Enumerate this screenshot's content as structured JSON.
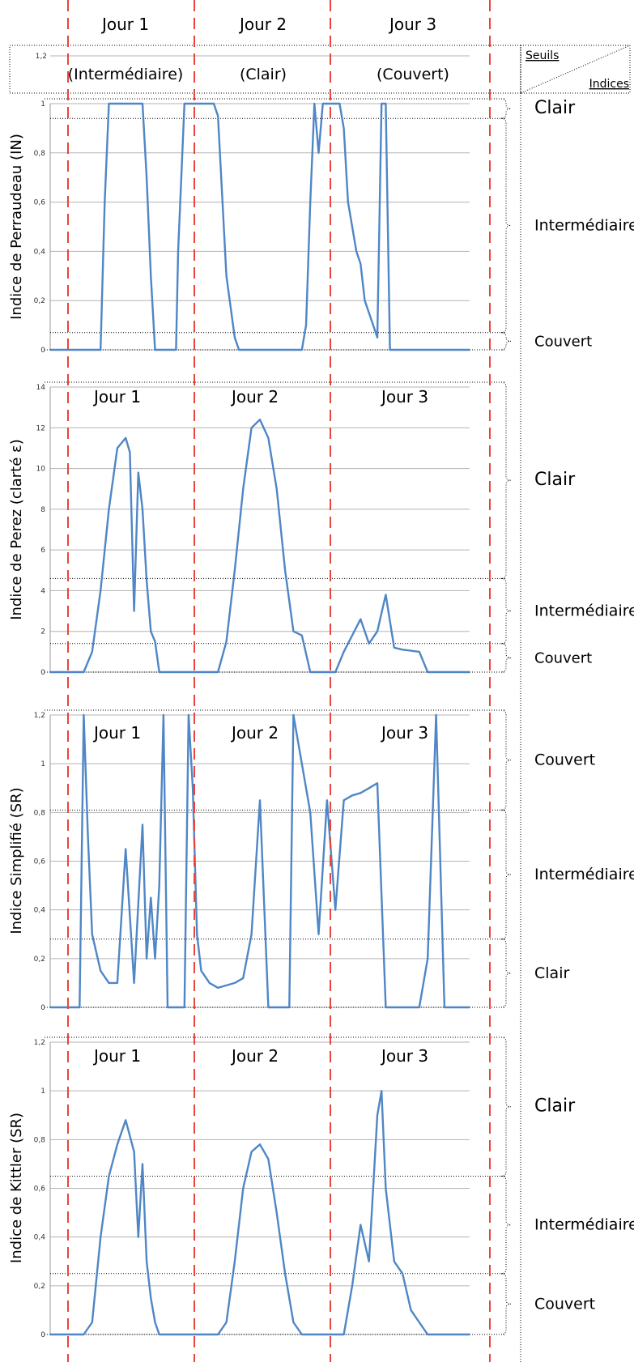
{
  "header": {
    "day_labels": [
      "Jour 1",
      "Jour 2",
      "Jour 3"
    ],
    "sky_types": [
      "(Intermédiaire)",
      "(Clair)",
      "(Couvert)"
    ],
    "axis_max_label": "1,2",
    "legend_seuils": "Seuils",
    "legend_indices": "Indices"
  },
  "colors": {
    "line": "#4f86c6",
    "grid": "#b3b3b3",
    "day_separator": "#e8453c",
    "threshold": "#000000"
  },
  "chart_data": [
    {
      "type": "line",
      "ylabel": "Indice de Perraudeau (IN)",
      "ylim": [
        0,
        1
      ],
      "yticks": [
        "0",
        "0,2",
        "0,4",
        "0,6",
        "0,8",
        "1"
      ],
      "day_labels": [],
      "thresholds": [
        0.07,
        0.94
      ],
      "zones": [
        "Clair",
        "Intermédiaire",
        "Couvert"
      ],
      "series": [
        {
          "x": [
            0,
            0.05,
            0.1,
            0.12,
            0.13,
            0.14,
            0.15,
            0.16,
            0.17,
            0.18,
            0.19,
            0.2,
            0.21,
            0.22,
            0.23,
            0.24,
            0.25,
            0.26,
            0.27,
            0.28,
            0.29,
            0.3,
            0.305,
            0.32,
            0.33,
            0.34,
            0.35,
            0.36,
            0.37,
            0.38,
            0.39,
            0.4,
            0.42,
            0.44,
            0.45,
            0.46,
            0.47,
            0.48,
            0.49,
            0.5,
            0.51,
            0.52,
            0.53,
            0.54,
            0.55,
            0.56,
            0.57,
            0.58,
            0.59,
            0.6,
            0.61,
            0.62,
            0.63,
            0.64,
            0.65,
            0.66,
            0.67,
            0.68,
            0.69,
            0.7,
            0.71,
            0.72,
            0.73,
            0.74,
            0.75,
            0.76,
            0.77,
            0.78,
            0.79,
            0.8,
            0.81,
            0.82,
            0.83,
            0.84,
            0.85,
            0.86,
            0.87,
            0.88,
            0.89,
            0.9,
            0.91,
            0.92,
            0.93,
            0.94,
            0.95,
            0.96,
            0.97,
            0.98,
            0.99,
            1
          ],
          "y": [
            0,
            0,
            0,
            0,
            0.6,
            1,
            1,
            1,
            1,
            1,
            1,
            1,
            1,
            1,
            0.7,
            0.3,
            0,
            0,
            0,
            0,
            0,
            0,
            0.4,
            1,
            1,
            1,
            1,
            1,
            1,
            1,
            1,
            0.95,
            0.3,
            0.05,
            0,
            0,
            0,
            0,
            0,
            0,
            0,
            0,
            0,
            0,
            0,
            0,
            0,
            0,
            0,
            0,
            0.1,
            0.6,
            1,
            0.8,
            1,
            1,
            1,
            1,
            1,
            0.9,
            0.6,
            0.5,
            0.4,
            0.35,
            0.2,
            0.15,
            0.1,
            0.05,
            1,
            1,
            0,
            0,
            0,
            0,
            0,
            0,
            0,
            0,
            0,
            0,
            0,
            0,
            0,
            0,
            0,
            0,
            0,
            0,
            0,
            0
          ]
        }
      ]
    },
    {
      "type": "line",
      "ylabel": "Indice de Perez (clarté ε)",
      "ylim": [
        0,
        14
      ],
      "yticks": [
        "0",
        "2",
        "4",
        "6",
        "8",
        "10",
        "12",
        "14"
      ],
      "day_labels": [
        "Jour 1",
        "Jour 2",
        "Jour 3"
      ],
      "thresholds": [
        1.4,
        4.6
      ],
      "zones": [
        "Clair",
        "Intermédiaire",
        "Couvert"
      ],
      "series": [
        {
          "x": [
            0,
            0.05,
            0.08,
            0.1,
            0.12,
            0.14,
            0.16,
            0.18,
            0.19,
            0.2,
            0.21,
            0.22,
            0.23,
            0.24,
            0.25,
            0.26,
            0.27,
            0.28,
            0.3,
            0.35,
            0.4,
            0.42,
            0.44,
            0.46,
            0.48,
            0.5,
            0.52,
            0.54,
            0.56,
            0.58,
            0.6,
            0.62,
            0.64,
            0.66,
            0.68,
            0.7,
            0.72,
            0.74,
            0.76,
            0.78,
            0.8,
            0.82,
            0.84,
            0.86,
            0.88,
            0.9,
            0.95,
            1
          ],
          "y": [
            0,
            0,
            0,
            1,
            4,
            8,
            11,
            11.5,
            10.8,
            3,
            9.8,
            8,
            4.5,
            2,
            1.5,
            0,
            0,
            0,
            0,
            0,
            0,
            1.5,
            5,
            9,
            12,
            12.4,
            11.5,
            9,
            5,
            2,
            1.8,
            0,
            0,
            0,
            0,
            1,
            1.8,
            2.6,
            1.4,
            2,
            3.8,
            1.2,
            1.1,
            1.05,
            1,
            0,
            0,
            0
          ]
        }
      ]
    },
    {
      "type": "line",
      "ylabel": "Indice Simplifié (SR)",
      "ylim": [
        0,
        1.2
      ],
      "yticks": [
        "0",
        "0,2",
        "0,4",
        "0,6",
        "0,8",
        "1",
        "1,2"
      ],
      "day_labels": [
        "Jour 1",
        "Jour 2",
        "Jour 3"
      ],
      "thresholds": [
        0.28,
        0.81
      ],
      "zones": [
        "Couvert",
        "Intermédiaire",
        "Clair"
      ],
      "series": [
        {
          "x": [
            0,
            0.07,
            0.08,
            0.09,
            0.1,
            0.12,
            0.14,
            0.16,
            0.18,
            0.2,
            0.22,
            0.23,
            0.24,
            0.25,
            0.26,
            0.27,
            0.28,
            0.29,
            0.3,
            0.31,
            0.32,
            0.33,
            0.34,
            0.35,
            0.36,
            0.38,
            0.4,
            0.42,
            0.44,
            0.46,
            0.48,
            0.5,
            0.52,
            0.54,
            0.55,
            0.56,
            0.57,
            0.58,
            0.6,
            0.62,
            0.64,
            0.66,
            0.68,
            0.7,
            0.72,
            0.74,
            0.76,
            0.78,
            0.8,
            0.82,
            0.84,
            0.85,
            0.86,
            0.88,
            0.9,
            0.92,
            0.94,
            0.95,
            0.96,
            0.98,
            1
          ],
          "y": [
            0,
            0,
            1.2,
            0.7,
            0.3,
            0.15,
            0.1,
            0.1,
            0.65,
            0.1,
            0.75,
            0.2,
            0.45,
            0.2,
            0.5,
            1.2,
            0,
            0,
            0,
            0,
            0,
            1.2,
            0.9,
            0.3,
            0.15,
            0.1,
            0.08,
            0.09,
            0.1,
            0.12,
            0.3,
            0.85,
            0,
            0,
            0,
            0,
            0,
            1.2,
            1,
            0.8,
            0.3,
            0.85,
            0.4,
            0.85,
            0.87,
            0.88,
            0.9,
            0.92,
            0,
            0,
            0,
            0,
            0,
            0,
            0.2,
            1.2,
            0,
            0,
            0,
            0,
            0
          ]
        }
      ]
    },
    {
      "type": "line",
      "ylabel": "Indice de Kittler (SR)",
      "ylim": [
        0,
        1.2
      ],
      "yticks": [
        "0",
        "0,2",
        "0,4",
        "0,6",
        "0,8",
        "1",
        "1,2"
      ],
      "day_labels": [
        "Jour 1",
        "Jour 2",
        "Jour 3"
      ],
      "thresholds": [
        0.25,
        0.65
      ],
      "zones": [
        "Clair",
        "Intermédiaire",
        "Couvert"
      ],
      "series": [
        {
          "x": [
            0,
            0.08,
            0.1,
            0.12,
            0.14,
            0.16,
            0.18,
            0.2,
            0.21,
            0.22,
            0.23,
            0.24,
            0.25,
            0.26,
            0.27,
            0.28,
            0.3,
            0.35,
            0.4,
            0.42,
            0.44,
            0.46,
            0.48,
            0.5,
            0.52,
            0.54,
            0.56,
            0.58,
            0.6,
            0.62,
            0.64,
            0.66,
            0.7,
            0.72,
            0.74,
            0.76,
            0.78,
            0.79,
            0.8,
            0.82,
            0.84,
            0.86,
            0.88,
            0.9,
            0.95,
            1
          ],
          "y": [
            0,
            0,
            0.05,
            0.4,
            0.65,
            0.78,
            0.88,
            0.75,
            0.4,
            0.7,
            0.3,
            0.15,
            0.05,
            0,
            0,
            0,
            0,
            0,
            0,
            0.05,
            0.3,
            0.6,
            0.75,
            0.78,
            0.72,
            0.5,
            0.25,
            0.05,
            0,
            0,
            0,
            0,
            0,
            0.2,
            0.45,
            0.3,
            0.9,
            1,
            0.6,
            0.3,
            0.25,
            0.1,
            0.05,
            0,
            0,
            0
          ]
        }
      ]
    }
  ]
}
